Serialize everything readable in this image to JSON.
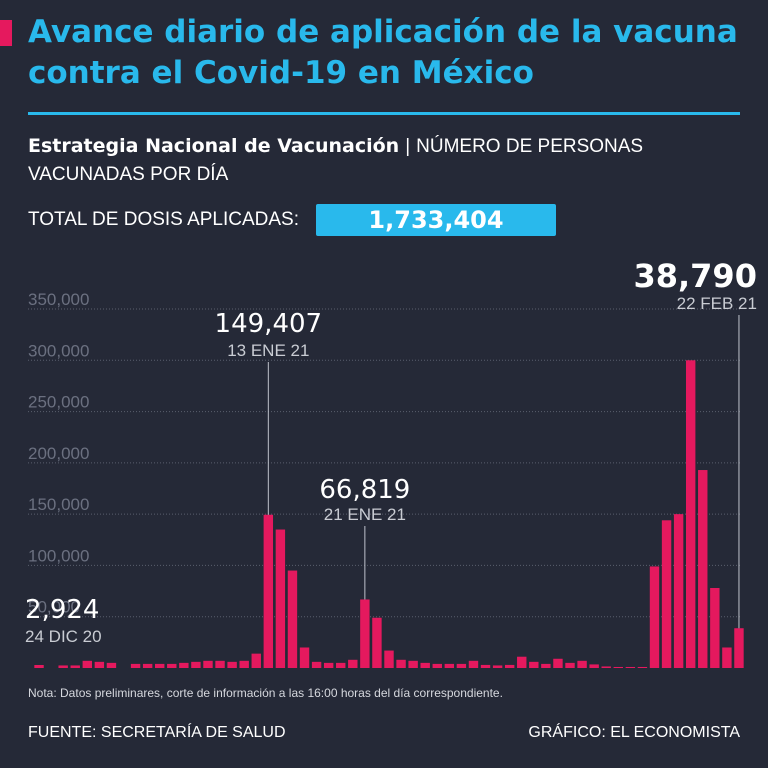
{
  "header": {
    "title": "Avance diario de aplicación de la vacuna contra el Covid-19 en México",
    "subtitle_strong": "Estrategia Nacional de Vacunación",
    "subtitle_sep": "|",
    "subtitle_rest": "NÚMERO DE PERSONAS VACUNADAS POR DÍA",
    "total_label": "TOTAL DE DOSIS APLICADAS:",
    "total_value": "1,733,404"
  },
  "footer": {
    "note": "Nota: Datos preliminares, corte de información a las 16:00 horas del día correspondiente.",
    "source": "FUENTE: SECRETARÍA DE SALUD",
    "credit": "GRÁFICO: EL ECONOMISTA"
  },
  "colors": {
    "background": "#252937",
    "title": "#29b9ec",
    "bar": "#e5195e",
    "grid": "#5a5f6e",
    "tick": "#6b7080",
    "annotation": "#ffffff",
    "annotation_sub": "#c9ccd3"
  },
  "chart_data": {
    "type": "bar",
    "ylim": [
      0,
      350000
    ],
    "yticks": [
      "350,000",
      "300,000",
      "250,000",
      "200,000",
      "150,000",
      "100,000",
      "50,000"
    ],
    "ytick_values": [
      350000,
      300000,
      250000,
      200000,
      150000,
      100000,
      50000
    ],
    "grid": true,
    "values": [
      2924,
      0,
      2500,
      2500,
      7000,
      6000,
      5000,
      0,
      4000,
      4000,
      4000,
      4000,
      5000,
      6000,
      7000,
      7000,
      6000,
      7000,
      14000,
      149407,
      135000,
      95000,
      20000,
      6000,
      5000,
      5000,
      8000,
      66819,
      49000,
      17000,
      8000,
      7000,
      5000,
      4000,
      4000,
      4000,
      7000,
      3000,
      2500,
      3000,
      11000,
      6000,
      4000,
      9000,
      5000,
      7000,
      3500,
      1500,
      1000,
      1000,
      1000,
      99000,
      144000,
      150000,
      300000,
      193000,
      78000,
      20000,
      38790
    ],
    "annotations": [
      {
        "index": 0,
        "value": "2,924",
        "date": "24 DIC 20"
      },
      {
        "index": 19,
        "value": "149,407",
        "date": "13 ENE 21"
      },
      {
        "index": 27,
        "value": "66,819",
        "date": "21 ENE 21"
      },
      {
        "index": 58,
        "value": "38,790",
        "date": "22 FEB 21"
      }
    ]
  }
}
